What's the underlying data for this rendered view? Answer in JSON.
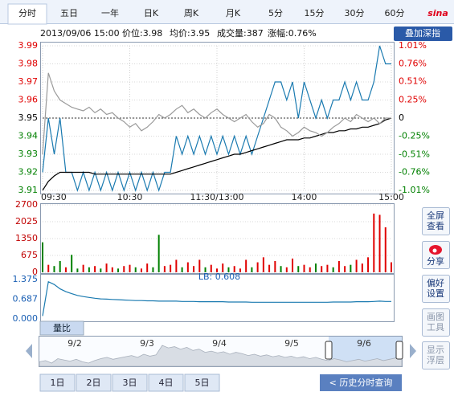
{
  "tabs": [
    "分时",
    "五日",
    "一年",
    "日K",
    "周K",
    "月K",
    "5分",
    "15分",
    "30分",
    "60分"
  ],
  "logo": "sina",
  "info": {
    "datetime": "2013/09/06 15:00",
    "price": "价位:3.98",
    "avg": "均价:3.95",
    "volume": "成交量:387",
    "change": "涨幅:0.76%"
  },
  "overlay_button": "叠加深指",
  "chart_data": [
    {
      "type": "line",
      "grid": true,
      "x": [
        0,
        4,
        8,
        12,
        16,
        20,
        24,
        28,
        32,
        36,
        40,
        44,
        48,
        52,
        56,
        60,
        64,
        68,
        72,
        76,
        80,
        84,
        88,
        92,
        96,
        100,
        104,
        108,
        112,
        116,
        120,
        124,
        128,
        132,
        136,
        140,
        144,
        148,
        152,
        156,
        160,
        164,
        168,
        172,
        176,
        180,
        184,
        188,
        192,
        196,
        200,
        204,
        208,
        212,
        216,
        220,
        224,
        228,
        232,
        236,
        240
      ],
      "xlim": [
        0,
        240
      ],
      "xticks": [
        {
          "value": 0,
          "label": "09:30"
        },
        {
          "value": 60,
          "label": "10:30"
        },
        {
          "value": 120,
          "label": "11:30/13:00"
        },
        {
          "value": 180,
          "label": "14:00"
        },
        {
          "value": 240,
          "label": "15:00"
        }
      ],
      "ylim": [
        3.91,
        3.99
      ],
      "yticks": [
        3.99,
        3.98,
        3.97,
        3.96,
        3.95,
        3.94,
        3.93,
        3.92,
        3.91
      ],
      "y2lim": [
        -1.01,
        1.01
      ],
      "y2ticks": [
        {
          "value": 1.01,
          "label": "1.01%"
        },
        {
          "value": 0.76,
          "label": "0.76%"
        },
        {
          "value": 0.51,
          "label": "0.51%"
        },
        {
          "value": 0.25,
          "label": "0.25%"
        },
        0,
        {
          "value": -0.25,
          "label": "-0.25%"
        },
        {
          "value": -0.51,
          "label": "-0.51%"
        },
        {
          "value": -0.76,
          "label": "-0.76%"
        },
        {
          "value": -1.01,
          "label": "-1.01%"
        }
      ],
      "tick_colors": {
        "up": "#e00000",
        "flat": "#000000",
        "down": "#008000"
      },
      "series": [
        {
          "color": "#1a7ab0",
          "values": [
            3.92,
            3.95,
            3.93,
            3.95,
            3.92,
            3.92,
            3.91,
            3.92,
            3.91,
            3.92,
            3.91,
            3.92,
            3.91,
            3.92,
            3.91,
            3.92,
            3.91,
            3.92,
            3.91,
            3.92,
            3.91,
            3.92,
            3.92,
            3.94,
            3.93,
            3.94,
            3.93,
            3.94,
            3.93,
            3.94,
            3.93,
            3.94,
            3.93,
            3.94,
            3.93,
            3.94,
            3.93,
            3.94,
            3.95,
            3.96,
            3.97,
            3.97,
            3.96,
            3.97,
            3.95,
            3.97,
            3.96,
            3.95,
            3.96,
            3.95,
            3.96,
            3.96,
            3.97,
            3.96,
            3.97,
            3.96,
            3.96,
            3.97,
            3.99,
            3.98,
            3.98
          ]
        },
        {
          "color": "#000000",
          "values": [
            3.91,
            3.915,
            3.918,
            3.92,
            3.92,
            3.92,
            3.92,
            3.92,
            3.92,
            3.919,
            3.919,
            3.919,
            3.919,
            3.919,
            3.919,
            3.919,
            3.919,
            3.919,
            3.919,
            3.919,
            3.919,
            3.919,
            3.919,
            3.92,
            3.921,
            3.922,
            3.923,
            3.924,
            3.925,
            3.926,
            3.927,
            3.928,
            3.929,
            3.93,
            3.93,
            3.931,
            3.932,
            3.933,
            3.934,
            3.935,
            3.936,
            3.937,
            3.938,
            3.938,
            3.938,
            3.939,
            3.939,
            3.94,
            3.941,
            3.942,
            3.942,
            3.943,
            3.943,
            3.944,
            3.944,
            3.945,
            3.945,
            3.946,
            3.947,
            3.949,
            3.95
          ]
        },
        {
          "color": "#9a9a9a",
          "values": [
            3.93,
            3.975,
            3.965,
            3.96,
            3.958,
            3.956,
            3.955,
            3.954,
            3.956,
            3.953,
            3.955,
            3.952,
            3.953,
            3.95,
            3.948,
            3.945,
            3.947,
            3.943,
            3.945,
            3.948,
            3.952,
            3.95,
            3.952,
            3.955,
            3.957,
            3.953,
            3.955,
            3.952,
            3.95,
            3.953,
            3.955,
            3.952,
            3.95,
            3.948,
            3.95,
            3.952,
            3.948,
            3.945,
            3.947,
            3.952,
            3.95,
            3.945,
            3.943,
            3.94,
            3.942,
            3.945,
            3.943,
            3.942,
            3.94,
            3.942,
            3.945,
            3.947,
            3.95,
            3.948,
            3.952,
            3.95,
            3.948,
            3.95,
            3.947,
            3.95,
            3.95
          ]
        }
      ]
    },
    {
      "type": "bar",
      "x": [
        0,
        4,
        8,
        12,
        16,
        20,
        24,
        28,
        32,
        36,
        40,
        44,
        48,
        52,
        56,
        60,
        64,
        68,
        72,
        76,
        80,
        84,
        88,
        92,
        96,
        100,
        104,
        108,
        112,
        116,
        120,
        124,
        128,
        132,
        136,
        140,
        144,
        148,
        152,
        156,
        160,
        164,
        168,
        172,
        176,
        180,
        184,
        188,
        192,
        196,
        200,
        204,
        208,
        212,
        216,
        220,
        224,
        228,
        232,
        236,
        240
      ],
      "xlim": [
        0,
        240
      ],
      "ylim": [
        0,
        2700
      ],
      "yticks": [
        2700,
        2025,
        1350,
        675,
        0
      ],
      "grid": true,
      "tick_color": "#c00000",
      "values": [
        1200,
        300,
        250,
        450,
        200,
        700,
        150,
        300,
        200,
        250,
        150,
        350,
        200,
        150,
        250,
        300,
        200,
        150,
        350,
        200,
        1500,
        250,
        300,
        500,
        200,
        400,
        250,
        500,
        200,
        300,
        150,
        350,
        200,
        250,
        150,
        500,
        200,
        400,
        600,
        300,
        450,
        250,
        200,
        550,
        250,
        300,
        200,
        350,
        250,
        300,
        200,
        450,
        250,
        300,
        500,
        350,
        600,
        2350,
        2300,
        1800,
        400
      ],
      "colors": [
        "#008000",
        "#e00000",
        "#008000",
        "#008000",
        "#e00000",
        "#008000",
        "#008000",
        "#e00000",
        "#008000",
        "#e00000",
        "#008000",
        "#e00000",
        "#e00000",
        "#008000",
        "#e00000",
        "#e00000",
        "#008000",
        "#e00000",
        "#e00000",
        "#008000",
        "#008000",
        "#e00000",
        "#e00000",
        "#e00000",
        "#008000",
        "#e00000",
        "#e00000",
        "#e00000",
        "#008000",
        "#e00000",
        "#e00000",
        "#e00000",
        "#008000",
        "#e00000",
        "#e00000",
        "#e00000",
        "#008000",
        "#e00000",
        "#e00000",
        "#e00000",
        "#e00000",
        "#008000",
        "#e00000",
        "#e00000",
        "#008000",
        "#e00000",
        "#e00000",
        "#008000",
        "#e00000",
        "#e00000",
        "#008000",
        "#e00000",
        "#e00000",
        "#008000",
        "#e00000",
        "#e00000",
        "#e00000",
        "#e00000",
        "#e00000",
        "#e00000",
        "#e00000"
      ]
    },
    {
      "type": "line",
      "annotation": "LB: 0.608",
      "x": [
        0,
        4,
        8,
        12,
        16,
        20,
        24,
        28,
        32,
        36,
        40,
        44,
        48,
        52,
        56,
        60,
        64,
        68,
        72,
        76,
        80,
        84,
        88,
        92,
        96,
        100,
        104,
        108,
        112,
        116,
        120,
        124,
        128,
        132,
        136,
        140,
        144,
        148,
        152,
        156,
        160,
        164,
        168,
        172,
        176,
        180,
        184,
        188,
        192,
        196,
        200,
        204,
        208,
        212,
        216,
        220,
        224,
        228,
        232,
        236,
        240
      ],
      "xlim": [
        0,
        240
      ],
      "ylim": [
        0,
        1.375
      ],
      "yticks": [
        1.375,
        0.687,
        {
          "value": 0,
          "label": "0.000"
        }
      ],
      "tick_color": "#1a5fb4",
      "series": [
        {
          "color": "#1a7ab0",
          "values": [
            0.1,
            1.3,
            1.2,
            1.05,
            0.95,
            0.88,
            0.82,
            0.78,
            0.75,
            0.72,
            0.7,
            0.69,
            0.68,
            0.67,
            0.66,
            0.65,
            0.64,
            0.64,
            0.63,
            0.63,
            0.62,
            0.62,
            0.62,
            0.62,
            0.61,
            0.61,
            0.61,
            0.6,
            0.6,
            0.6,
            0.6,
            0.6,
            0.59,
            0.59,
            0.59,
            0.59,
            0.58,
            0.58,
            0.58,
            0.58,
            0.58,
            0.58,
            0.58,
            0.58,
            0.58,
            0.58,
            0.58,
            0.58,
            0.58,
            0.58,
            0.59,
            0.59,
            0.59,
            0.59,
            0.6,
            0.6,
            0.6,
            0.61,
            0.62,
            0.61,
            0.61
          ]
        }
      ]
    }
  ],
  "lb_tab": "量比",
  "navigator": {
    "labels": [
      "9/2",
      "9/3",
      "9/4",
      "9/5",
      "9/6"
    ],
    "values": [
      40,
      42,
      38,
      45,
      43,
      41,
      44,
      40,
      38,
      42,
      45,
      47,
      44,
      46,
      48,
      50,
      47,
      52,
      49,
      51,
      66,
      62,
      64,
      60,
      63,
      58,
      60,
      55,
      57,
      54,
      56,
      52,
      55,
      53,
      50,
      52,
      49,
      51,
      48,
      50,
      47,
      49,
      46,
      48,
      45,
      47,
      44,
      42,
      45,
      43,
      40,
      42,
      44,
      41,
      43,
      45,
      42,
      44,
      46,
      48
    ]
  },
  "day_buttons": [
    "1日",
    "2日",
    "3日",
    "4日",
    "5日"
  ],
  "history_button": "< 历史分时查询",
  "side_buttons": [
    [
      "全屏",
      "查看"
    ],
    [
      "分享"
    ],
    [
      "偏好",
      "设置"
    ],
    [
      "画图",
      "工具"
    ],
    [
      "显示",
      "浮层"
    ]
  ]
}
